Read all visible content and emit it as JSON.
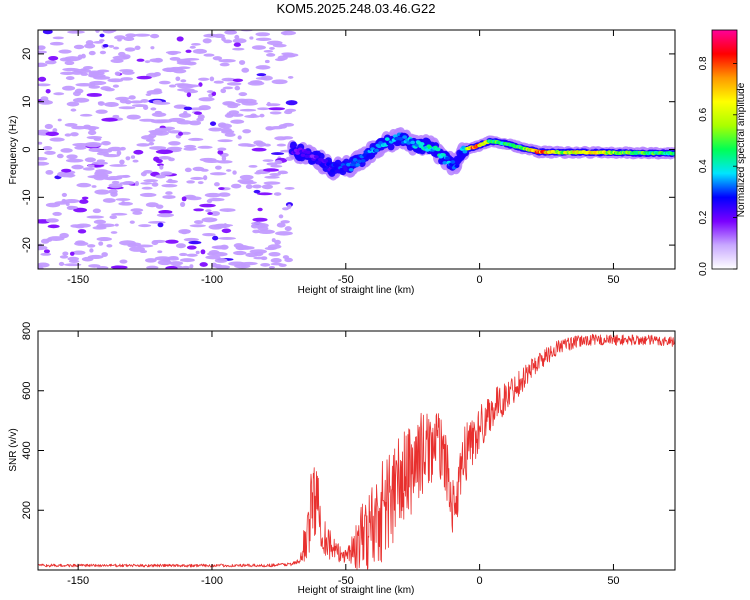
{
  "chart_data": [
    {
      "type": "heatmap",
      "title": "KOM5.2025.248.03.46.G22",
      "xlabel": "Height of straight line (km)",
      "ylabel": "Frequency (Hz)",
      "xlim": [
        -165,
        73
      ],
      "ylim": [
        -25,
        25
      ],
      "xticks": [
        -150,
        -100,
        -50,
        0,
        50
      ],
      "xtick_labels": [
        "-150",
        "-100",
        "-50",
        "0",
        "50"
      ],
      "yticks": [
        -20,
        -10,
        0,
        10,
        20
      ],
      "ytick_labels": [
        "-20",
        "-10",
        "0",
        "10",
        "20"
      ],
      "colorbar": {
        "label": "Normalized spectral amplitude",
        "range": [
          0,
          0.93
        ],
        "ticks": [
          0.0,
          0.2,
          0.4,
          0.6,
          0.8
        ],
        "tick_labels": [
          "0.0",
          "0.2",
          "0.4",
          "0.6",
          "0.8"
        ],
        "colormap": [
          "#ffffff",
          "#c8a8ff",
          "#7a00ff",
          "#0000ff",
          "#00e5ff",
          "#00ff55",
          "#aaff00",
          "#ffff00",
          "#ff9900",
          "#ff0000",
          "#ff0099"
        ]
      },
      "noise_region_x": [
        -165,
        -70
      ],
      "ridge": [
        {
          "x": -70,
          "y": 0,
          "amp": 0.22
        },
        {
          "x": -62,
          "y": -1.5,
          "amp": 0.2
        },
        {
          "x": -55,
          "y": -4,
          "amp": 0.28
        },
        {
          "x": -48,
          "y": -3.5,
          "amp": 0.3
        },
        {
          "x": -42,
          "y": -1,
          "amp": 0.32
        },
        {
          "x": -36,
          "y": 1,
          "amp": 0.35
        },
        {
          "x": -30,
          "y": 2.5,
          "amp": 0.33
        },
        {
          "x": -24,
          "y": 1,
          "amp": 0.38
        },
        {
          "x": -18,
          "y": 0.5,
          "amp": 0.4
        },
        {
          "x": -13,
          "y": -2,
          "amp": 0.36
        },
        {
          "x": -9,
          "y": -3.5,
          "amp": 0.3
        },
        {
          "x": -6,
          "y": 0,
          "amp": 0.35
        },
        {
          "x": -2,
          "y": 0.5,
          "amp": 0.85
        },
        {
          "x": 4,
          "y": 1.8,
          "amp": 0.5
        },
        {
          "x": 10,
          "y": 1.2,
          "amp": 0.45
        },
        {
          "x": 16,
          "y": 0.3,
          "amp": 0.5
        },
        {
          "x": 22,
          "y": -0.5,
          "amp": 0.8
        },
        {
          "x": 30,
          "y": -0.6,
          "amp": 0.55
        },
        {
          "x": 40,
          "y": -0.6,
          "amp": 0.7
        },
        {
          "x": 55,
          "y": -0.7,
          "amp": 0.5
        },
        {
          "x": 73,
          "y": -0.8,
          "amp": 0.45
        }
      ]
    },
    {
      "type": "line",
      "xlabel": "Height of straight line (km)",
      "ylabel": "SNR (v/v)",
      "xlim": [
        -165,
        73
      ],
      "ylim": [
        0,
        800
      ],
      "xticks": [
        -150,
        -100,
        -50,
        0,
        50
      ],
      "xtick_labels": [
        "-150",
        "-100",
        "-50",
        "0",
        "50"
      ],
      "yticks": [
        200,
        400,
        600,
        800
      ],
      "ytick_labels": [
        "200",
        "400",
        "600",
        "800"
      ],
      "series": [
        {
          "name": "SNR",
          "color": "#e8302e",
          "x": [
            -165,
            -140,
            -110,
            -80,
            -70,
            -67,
            -64,
            -62,
            -60,
            -58,
            -55,
            -52,
            -50,
            -47,
            -44,
            -41,
            -38,
            -35,
            -32,
            -29,
            -26,
            -23,
            -20,
            -17,
            -14,
            -12,
            -10,
            -8,
            -6,
            -4,
            -2,
            0,
            3,
            6,
            9,
            12,
            15,
            18,
            21,
            24,
            27,
            30,
            35,
            40,
            50,
            60,
            73
          ],
          "values": [
            15,
            15,
            15,
            15,
            20,
            30,
            150,
            250,
            200,
            120,
            70,
            50,
            55,
            70,
            100,
            140,
            180,
            220,
            260,
            300,
            330,
            380,
            400,
            420,
            410,
            320,
            210,
            240,
            380,
            420,
            440,
            470,
            520,
            550,
            570,
            600,
            630,
            660,
            690,
            710,
            730,
            750,
            760,
            770,
            770,
            770,
            765
          ],
          "jitter_amplitude": [
            5,
            5,
            5,
            5,
            6,
            10,
            120,
            130,
            110,
            80,
            45,
            30,
            30,
            60,
            120,
            150,
            170,
            180,
            180,
            170,
            160,
            150,
            130,
            120,
            110,
            100,
            90,
            100,
            110,
            100,
            90,
            80,
            70,
            60,
            55,
            50,
            45,
            40,
            35,
            30,
            28,
            25,
            22,
            20,
            18,
            18,
            18
          ]
        }
      ]
    }
  ]
}
